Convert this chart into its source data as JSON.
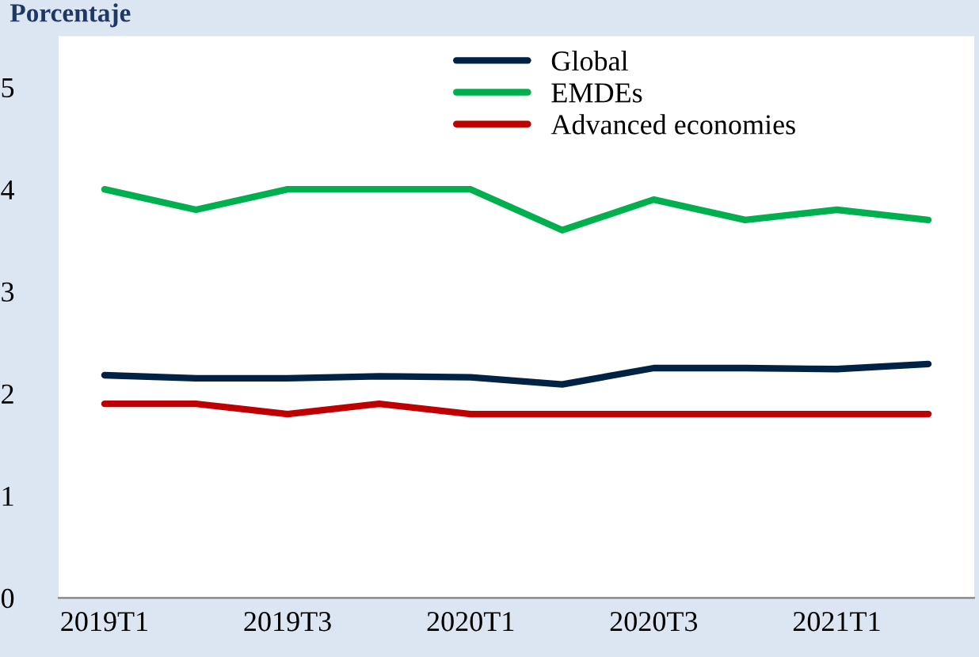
{
  "chart_data": {
    "type": "line",
    "ylabel": "Porcentaje",
    "categories": [
      "2019T1",
      null,
      "2019T3",
      null,
      "2020T1",
      null,
      "2020T3",
      null,
      "2021T1",
      null
    ],
    "series": [
      {
        "name": "Global",
        "color": "#002345",
        "values": [
          2.18,
          2.15,
          2.15,
          2.17,
          2.16,
          2.09,
          2.25,
          2.25,
          2.24,
          2.29
        ]
      },
      {
        "name": "EMDEs",
        "color": "#00b04f",
        "values": [
          4.0,
          3.8,
          4.0,
          4.0,
          4.0,
          3.6,
          3.9,
          3.7,
          3.8,
          3.7
        ]
      },
      {
        "name": "Advanced economies",
        "color": "#c00000",
        "values": [
          1.9,
          1.9,
          1.8,
          1.9,
          1.8,
          1.8,
          1.8,
          1.8,
          1.8,
          1.8
        ]
      }
    ],
    "ylim": [
      0,
      5.5
    ],
    "yticks": [
      0,
      1,
      2,
      3,
      4,
      5
    ],
    "grid": false,
    "legend": "top",
    "marker": "none",
    "line_style": "solid"
  }
}
